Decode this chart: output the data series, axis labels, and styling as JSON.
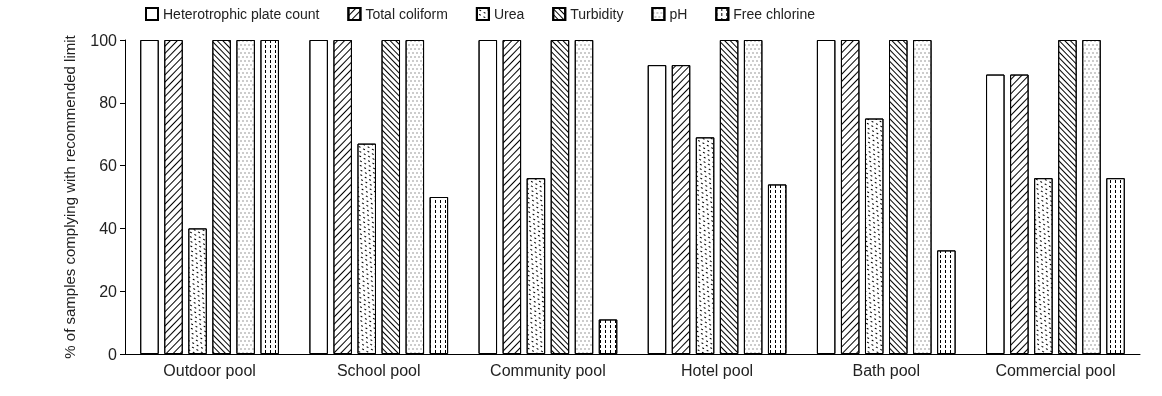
{
  "chart_data": {
    "type": "bar",
    "ylabel": "% of samples complying with recommended limit",
    "categories": [
      "Outdoor pool",
      "School pool",
      "Community pool",
      "Hotel pool",
      "Bath pool",
      "Commercial pool"
    ],
    "series": [
      {
        "name": "Heterotrophic plate count",
        "color": "#ffffff",
        "values": [
          100,
          100,
          100,
          92,
          100,
          89
        ]
      },
      {
        "name": "Total coliform",
        "color": "#ffffff",
        "values": [
          100,
          100,
          100,
          92,
          100,
          89
        ]
      },
      {
        "name": "Urea",
        "color": "#ffffff",
        "values": [
          40,
          67,
          56,
          69,
          75,
          56
        ]
      },
      {
        "name": "Turbidity",
        "color": "#ffffff",
        "values": [
          100,
          100,
          100,
          100,
          100,
          100
        ]
      },
      {
        "name": "pH",
        "color": "#ffffff",
        "values": [
          100,
          100,
          100,
          100,
          100,
          100
        ]
      },
      {
        "name": "Free chlorine",
        "color": "#ffffff",
        "values": [
          100,
          50,
          11,
          54,
          33,
          56
        ]
      }
    ],
    "ylim": [
      0,
      100
    ],
    "yticks": [
      0,
      20,
      40,
      60,
      80,
      100
    ],
    "grid": false,
    "legend": "top"
  }
}
